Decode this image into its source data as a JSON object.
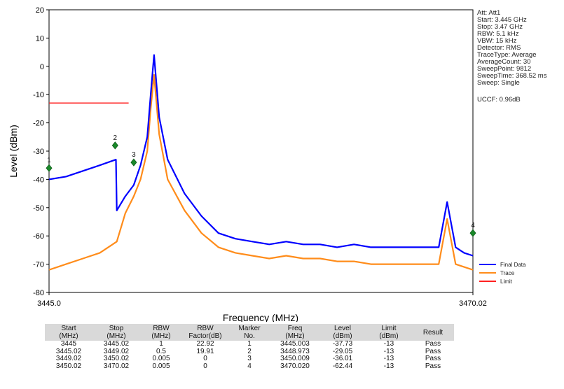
{
  "chart_data": {
    "type": "line",
    "xlabel": "Frequency (MHz)",
    "ylabel": "Level (dBm)",
    "xlim": [
      3445.0,
      3470.02
    ],
    "ylim": [
      -80,
      20
    ],
    "x_tick_labels": [
      "3445.0",
      "3470.02"
    ],
    "y_ticks": [
      20,
      10,
      0,
      -10,
      -20,
      -30,
      -40,
      -50,
      -60,
      -70,
      -80
    ],
    "grid": false,
    "legend_position": "bottom-right",
    "series": [
      {
        "name": "Final Data",
        "color": "#0000ff",
        "x": [
          3445.0,
          3446.0,
          3447.0,
          3448.0,
          3448.95,
          3449.0,
          3449.5,
          3450.0,
          3450.4,
          3450.8,
          3451.0,
          3451.2,
          3451.5,
          3452.0,
          3453.0,
          3454.0,
          3455.0,
          3456.0,
          3457.0,
          3458.0,
          3459.0,
          3460.0,
          3461.0,
          3462.0,
          3463.0,
          3464.0,
          3465.0,
          3466.0,
          3467.0,
          3468.0,
          3468.5,
          3469.0,
          3469.5,
          3470.02
        ],
        "y": [
          -40,
          -39,
          -37,
          -35,
          -33,
          -51,
          -46,
          -42,
          -35,
          -25,
          -10,
          4,
          -18,
          -33,
          -45,
          -53,
          -59,
          -61,
          -62,
          -63,
          -62,
          -63,
          -63,
          -64,
          -63,
          -64,
          -64,
          -64,
          -64,
          -64,
          -48,
          -64,
          -66,
          -67
        ]
      },
      {
        "name": "Trace",
        "color": "#ff8c1a",
        "x": [
          3445.0,
          3446.0,
          3447.0,
          3448.0,
          3449.0,
          3449.5,
          3450.0,
          3450.4,
          3450.8,
          3451.0,
          3451.2,
          3451.5,
          3452.0,
          3453.0,
          3454.0,
          3455.0,
          3456.0,
          3457.0,
          3458.0,
          3459.0,
          3460.0,
          3461.0,
          3462.0,
          3463.0,
          3464.0,
          3465.0,
          3466.0,
          3467.0,
          3468.0,
          3468.5,
          3469.0,
          3469.5,
          3470.02
        ],
        "y": [
          -72,
          -70,
          -68,
          -66,
          -62,
          -52,
          -46,
          -40,
          -30,
          -15,
          -3,
          -24,
          -40,
          -51,
          -59,
          -64,
          -66,
          -67,
          -68,
          -67,
          -68,
          -68,
          -69,
          -69,
          -70,
          -70,
          -70,
          -70,
          -70,
          -54,
          -70,
          -71,
          -72
        ]
      },
      {
        "name": "Limit",
        "color": "#ff2020",
        "x": [
          3445.0,
          3449.7
        ],
        "y": [
          -13,
          -13
        ]
      }
    ],
    "markers": [
      {
        "label": "1",
        "x": 3445.0,
        "y": -36
      },
      {
        "label": "2",
        "x": 3448.9,
        "y": -28
      },
      {
        "label": "3",
        "x": 3450.0,
        "y": -34
      },
      {
        "label": "4",
        "x": 3470.02,
        "y": -59
      }
    ]
  },
  "settings": {
    "lines": [
      "Att: Att1",
      "Start: 3.445 GHz",
      "Stop: 3.47 GHz",
      "RBW: 5.1 kHz",
      "VBW: 15 kHz",
      "Detector: RMS",
      "TraceType: Average",
      "AverageCount: 30",
      "SweepPoint: 9812",
      "SweepTime: 368.52 ms",
      "Sweep: Single"
    ],
    "uccf": "UCCF: 0.96dB"
  },
  "results_table": {
    "headers": [
      [
        "Start",
        "(MHz)"
      ],
      [
        "Stop",
        "(MHz)"
      ],
      [
        "RBW",
        "(MHz)"
      ],
      [
        "RBW",
        "Factor(dB)"
      ],
      [
        "Marker",
        "No."
      ],
      [
        "Freq",
        "(MHz)"
      ],
      [
        "Level",
        "(dBm)"
      ],
      [
        "Limit",
        "(dBm)"
      ],
      [
        "Result",
        ""
      ]
    ],
    "rows": [
      [
        "3445",
        "3445.02",
        "1",
        "22.92",
        "1",
        "3445.003",
        "-37.73",
        "-13",
        "Pass"
      ],
      [
        "3445.02",
        "3449.02",
        "0.5",
        "19.91",
        "2",
        "3448.973",
        "-29.05",
        "-13",
        "Pass"
      ],
      [
        "3449.02",
        "3450.02",
        "0.005",
        "0",
        "3",
        "3450.009",
        "-36.01",
        "-13",
        "Pass"
      ],
      [
        "3450.02",
        "3470.02",
        "0.005",
        "0",
        "4",
        "3470.020",
        "-62.44",
        "-13",
        "Pass"
      ]
    ]
  }
}
